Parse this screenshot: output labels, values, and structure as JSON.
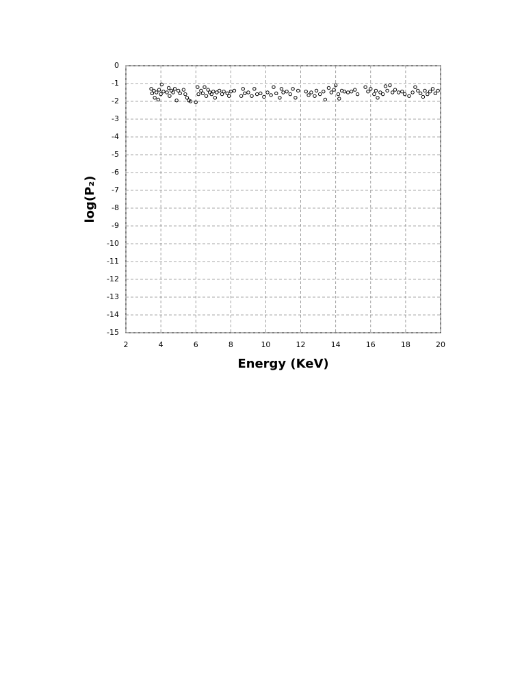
{
  "chart_data": {
    "type": "scatter",
    "x_label": "Energy (KeV)",
    "y_label": "log(P₂)",
    "xlim": [
      2,
      20
    ],
    "xticks": [
      2,
      4,
      6,
      8,
      10,
      12,
      14,
      16,
      18,
      20
    ],
    "ylim": [
      -15,
      0
    ],
    "yticks": [
      0,
      -1,
      -2,
      -3,
      -4,
      -5,
      -6,
      -7,
      -8,
      -9,
      -10,
      -11,
      -12,
      -13,
      -14,
      -15
    ],
    "grid": true,
    "color": "#000000",
    "x": [
      3.45,
      3.5,
      3.6,
      3.65,
      3.75,
      3.85,
      3.9,
      4.0,
      4.05,
      4.15,
      4.35,
      4.45,
      4.5,
      4.6,
      4.7,
      4.8,
      4.9,
      5.0,
      5.1,
      5.3,
      5.4,
      5.5,
      5.6,
      5.7,
      6.0,
      6.1,
      6.15,
      6.3,
      6.4,
      6.5,
      6.6,
      6.7,
      6.8,
      6.9,
      7.0,
      7.1,
      7.2,
      7.35,
      7.5,
      7.6,
      7.8,
      7.9,
      8.0,
      8.2,
      8.6,
      8.7,
      8.8,
      9.0,
      9.2,
      9.35,
      9.5,
      9.7,
      9.9,
      10.1,
      10.3,
      10.45,
      10.6,
      10.8,
      10.9,
      11.0,
      11.2,
      11.4,
      11.55,
      11.7,
      11.85,
      12.3,
      12.45,
      12.6,
      12.8,
      12.9,
      13.1,
      13.3,
      13.4,
      13.6,
      13.75,
      13.9,
      14.0,
      14.15,
      14.2,
      14.35,
      14.5,
      14.7,
      14.9,
      15.1,
      15.25,
      15.7,
      15.85,
      16.0,
      16.2,
      16.3,
      16.4,
      16.55,
      16.7,
      16.85,
      16.95,
      17.1,
      17.25,
      17.4,
      17.6,
      17.8,
      17.95,
      18.2,
      18.4,
      18.55,
      18.7,
      18.85,
      19.0,
      19.1,
      19.25,
      19.4,
      19.55,
      19.7,
      19.85
    ],
    "values": [
      -1.3,
      -1.55,
      -1.4,
      -1.8,
      -1.5,
      -1.9,
      -1.35,
      -1.6,
      -1.05,
      -1.45,
      -1.5,
      -1.25,
      -1.7,
      -1.4,
      -1.5,
      -1.3,
      -1.95,
      -1.4,
      -1.55,
      -1.35,
      -1.6,
      -1.8,
      -1.95,
      -2.0,
      -2.05,
      -1.2,
      -1.6,
      -1.4,
      -1.55,
      -1.2,
      -1.7,
      -1.35,
      -1.5,
      -1.6,
      -1.45,
      -1.8,
      -1.5,
      -1.4,
      -1.6,
      -1.45,
      -1.55,
      -1.7,
      -1.45,
      -1.4,
      -1.7,
      -1.3,
      -1.55,
      -1.5,
      -1.7,
      -1.3,
      -1.6,
      -1.55,
      -1.75,
      -1.5,
      -1.65,
      -1.2,
      -1.55,
      -1.8,
      -1.3,
      -1.5,
      -1.45,
      -1.6,
      -1.3,
      -1.8,
      -1.4,
      -1.45,
      -1.65,
      -1.5,
      -1.7,
      -1.4,
      -1.6,
      -1.45,
      -1.9,
      -1.25,
      -1.5,
      -1.35,
      -1.1,
      -1.6,
      -1.85,
      -1.4,
      -1.45,
      -1.5,
      -1.45,
      -1.35,
      -1.6,
      -1.2,
      -1.45,
      -1.3,
      -1.6,
      -1.4,
      -1.8,
      -1.5,
      -1.6,
      -1.15,
      -1.4,
      -1.1,
      -1.5,
      -1.35,
      -1.5,
      -1.45,
      -1.6,
      -1.7,
      -1.5,
      -1.2,
      -1.4,
      -1.55,
      -1.75,
      -1.4,
      -1.6,
      -1.45,
      -1.3,
      -1.55,
      -1.4
    ]
  }
}
